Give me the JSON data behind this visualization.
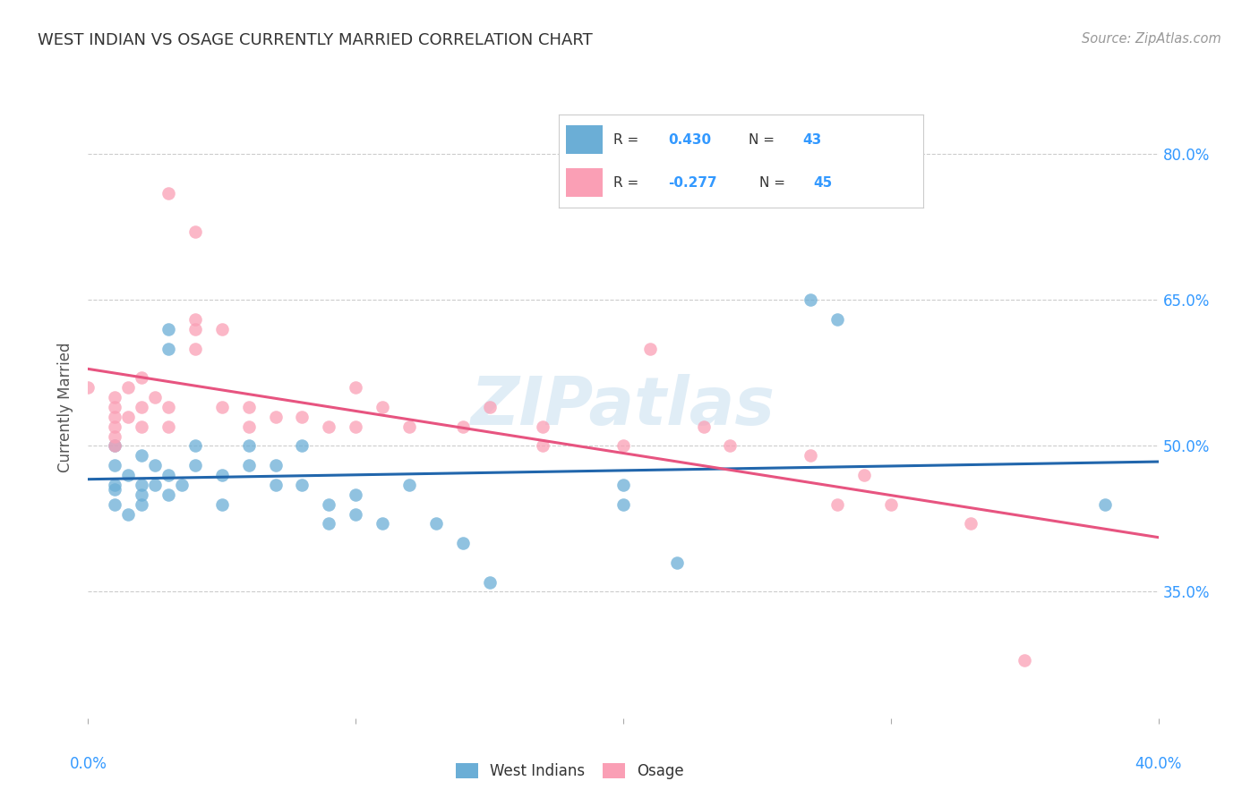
{
  "title": "WEST INDIAN VS OSAGE CURRENTLY MARRIED CORRELATION CHART",
  "source": "Source: ZipAtlas.com",
  "ylabel": "Currently Married",
  "y_tick_labels": [
    "35.0%",
    "50.0%",
    "65.0%",
    "80.0%"
  ],
  "y_tick_values": [
    0.35,
    0.5,
    0.65,
    0.8
  ],
  "xlim": [
    0.0,
    0.4
  ],
  "ylim": [
    0.22,
    0.86
  ],
  "blue_r": "0.430",
  "blue_n": "43",
  "pink_r": "-0.277",
  "pink_n": "45",
  "watermark": "ZIPatlas",
  "blue_color": "#6baed6",
  "pink_color": "#fa9fb5",
  "blue_line_color": "#2166ac",
  "pink_line_color": "#e75480",
  "blue_scatter": [
    [
      0.01,
      0.455
    ],
    [
      0.01,
      0.46
    ],
    [
      0.01,
      0.44
    ],
    [
      0.01,
      0.48
    ],
    [
      0.01,
      0.5
    ],
    [
      0.015,
      0.47
    ],
    [
      0.015,
      0.43
    ],
    [
      0.02,
      0.45
    ],
    [
      0.02,
      0.46
    ],
    [
      0.02,
      0.44
    ],
    [
      0.02,
      0.49
    ],
    [
      0.025,
      0.46
    ],
    [
      0.025,
      0.48
    ],
    [
      0.03,
      0.47
    ],
    [
      0.03,
      0.45
    ],
    [
      0.03,
      0.62
    ],
    [
      0.03,
      0.6
    ],
    [
      0.035,
      0.46
    ],
    [
      0.04,
      0.5
    ],
    [
      0.04,
      0.48
    ],
    [
      0.05,
      0.47
    ],
    [
      0.05,
      0.44
    ],
    [
      0.06,
      0.5
    ],
    [
      0.06,
      0.48
    ],
    [
      0.07,
      0.46
    ],
    [
      0.07,
      0.48
    ],
    [
      0.08,
      0.46
    ],
    [
      0.08,
      0.5
    ],
    [
      0.09,
      0.42
    ],
    [
      0.09,
      0.44
    ],
    [
      0.1,
      0.43
    ],
    [
      0.1,
      0.45
    ],
    [
      0.11,
      0.42
    ],
    [
      0.12,
      0.46
    ],
    [
      0.13,
      0.42
    ],
    [
      0.14,
      0.4
    ],
    [
      0.15,
      0.36
    ],
    [
      0.2,
      0.46
    ],
    [
      0.2,
      0.44
    ],
    [
      0.22,
      0.38
    ],
    [
      0.27,
      0.65
    ],
    [
      0.28,
      0.63
    ],
    [
      0.38,
      0.44
    ]
  ],
  "pink_scatter": [
    [
      0.0,
      0.56
    ],
    [
      0.01,
      0.55
    ],
    [
      0.01,
      0.54
    ],
    [
      0.01,
      0.52
    ],
    [
      0.01,
      0.5
    ],
    [
      0.01,
      0.53
    ],
    [
      0.01,
      0.51
    ],
    [
      0.015,
      0.56
    ],
    [
      0.015,
      0.53
    ],
    [
      0.02,
      0.57
    ],
    [
      0.02,
      0.54
    ],
    [
      0.02,
      0.52
    ],
    [
      0.025,
      0.55
    ],
    [
      0.03,
      0.52
    ],
    [
      0.03,
      0.54
    ],
    [
      0.03,
      0.76
    ],
    [
      0.04,
      0.72
    ],
    [
      0.04,
      0.63
    ],
    [
      0.04,
      0.6
    ],
    [
      0.04,
      0.62
    ],
    [
      0.05,
      0.62
    ],
    [
      0.05,
      0.54
    ],
    [
      0.06,
      0.52
    ],
    [
      0.06,
      0.54
    ],
    [
      0.07,
      0.53
    ],
    [
      0.08,
      0.53
    ],
    [
      0.09,
      0.52
    ],
    [
      0.1,
      0.52
    ],
    [
      0.1,
      0.56
    ],
    [
      0.11,
      0.54
    ],
    [
      0.12,
      0.52
    ],
    [
      0.14,
      0.52
    ],
    [
      0.15,
      0.54
    ],
    [
      0.17,
      0.5
    ],
    [
      0.17,
      0.52
    ],
    [
      0.2,
      0.5
    ],
    [
      0.21,
      0.6
    ],
    [
      0.23,
      0.52
    ],
    [
      0.24,
      0.5
    ],
    [
      0.27,
      0.49
    ],
    [
      0.29,
      0.47
    ],
    [
      0.3,
      0.44
    ],
    [
      0.33,
      0.42
    ],
    [
      0.28,
      0.44
    ],
    [
      0.35,
      0.28
    ]
  ],
  "background_color": "#ffffff",
  "grid_color": "#cccccc"
}
